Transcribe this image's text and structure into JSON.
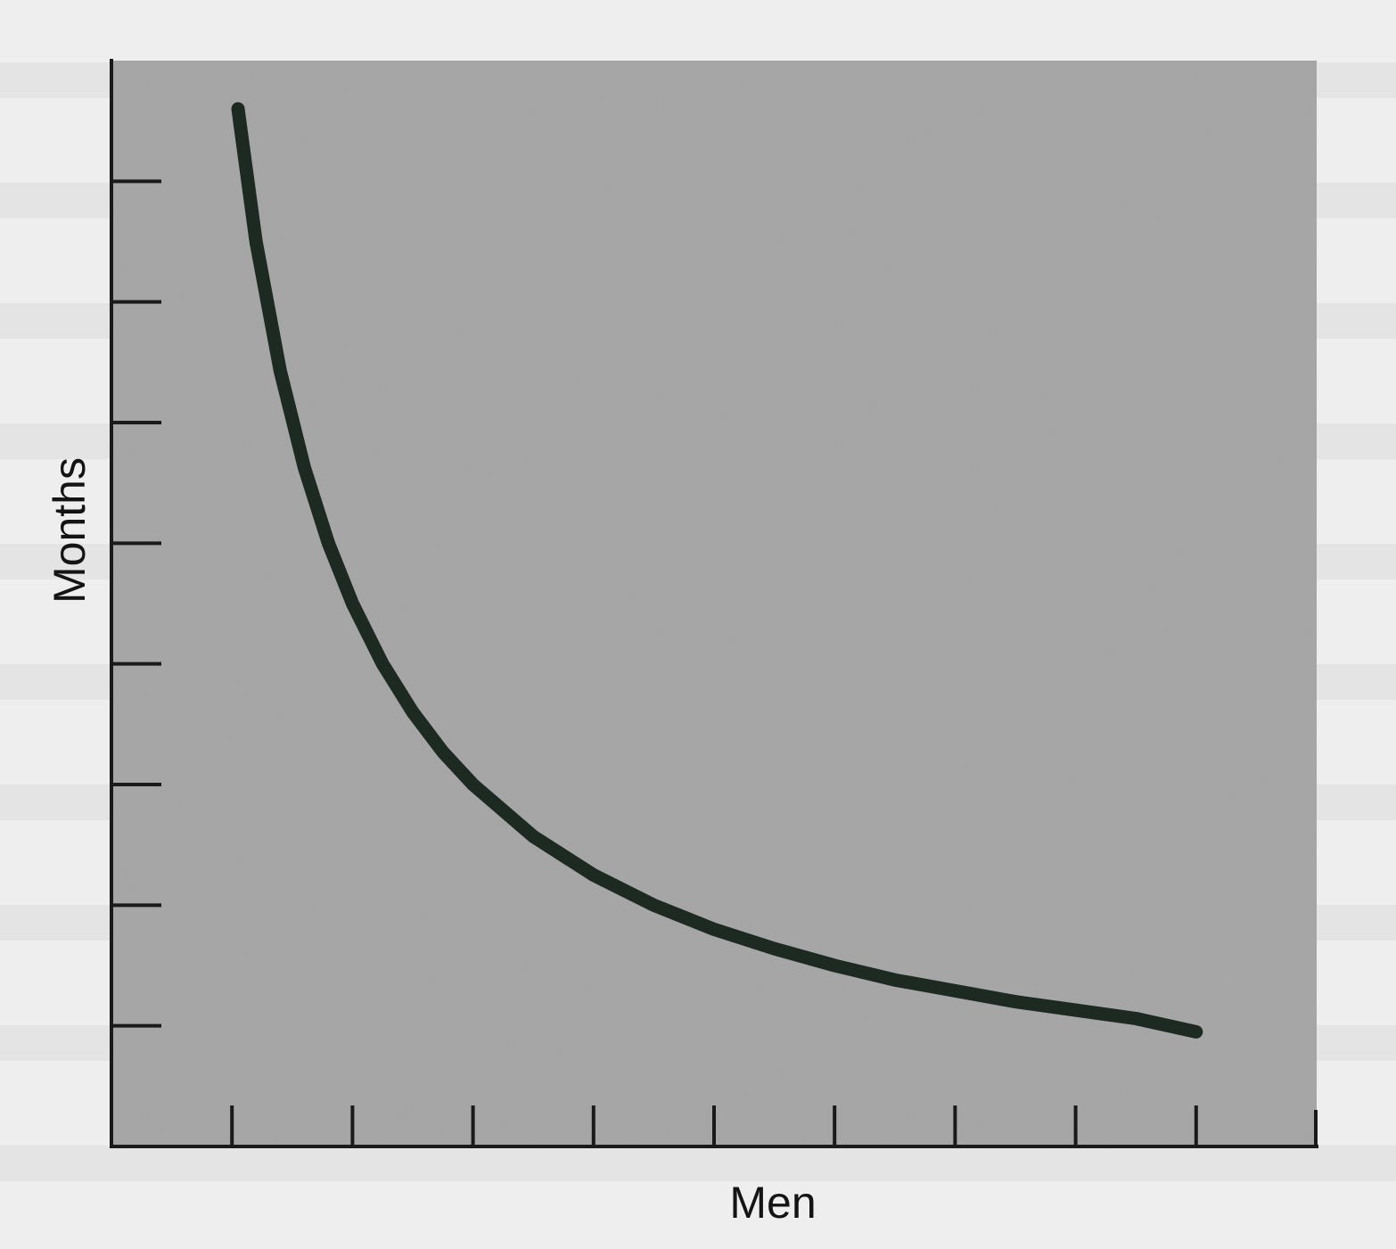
{
  "chart_data": {
    "type": "line",
    "title": "",
    "xlabel": "Men",
    "ylabel": "Months",
    "x_ticks": 9,
    "y_ticks": 8,
    "tick_labels_shown": false,
    "grid": false,
    "legend": "none",
    "xlim": [
      0,
      10
    ],
    "ylim": [
      0,
      9
    ],
    "series": [
      {
        "x": [
          1.05,
          1.2,
          1.4,
          1.6,
          1.8,
          2.0,
          2.25,
          2.5,
          2.75,
          3.0,
          3.5,
          4.0,
          4.5,
          5.0,
          5.5,
          6.0,
          6.5,
          7.0,
          7.5,
          8.0,
          8.5,
          9.0
        ],
        "y": [
          8.6,
          7.5,
          6.43,
          5.63,
          5.0,
          4.5,
          4.0,
          3.6,
          3.27,
          3.0,
          2.57,
          2.25,
          2.0,
          1.8,
          1.64,
          1.5,
          1.38,
          1.29,
          1.2,
          1.13,
          1.06,
          0.95
        ]
      }
    ],
    "colors": {
      "plot_background": "#a9a9a9",
      "axes": "#1a1a1a",
      "curve": "#1c2a22"
    }
  }
}
